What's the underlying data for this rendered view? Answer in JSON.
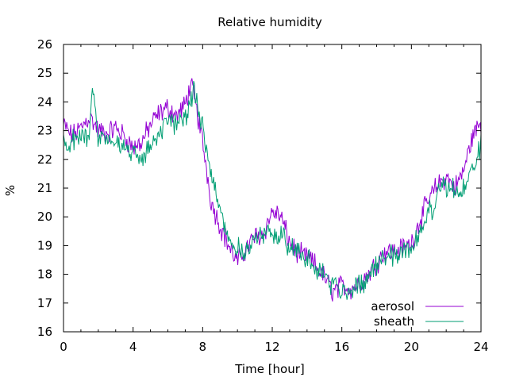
{
  "chart_data": {
    "type": "line",
    "title": "Relative humidity",
    "xlabel": "Time [hour]",
    "ylabel": "%",
    "xlim": [
      0,
      24
    ],
    "ylim": [
      16,
      26
    ],
    "xticks": [
      "0",
      "4",
      "8",
      "12",
      "16",
      "20",
      "24"
    ],
    "yticks": [
      "16",
      "17",
      "18",
      "19",
      "20",
      "21",
      "22",
      "23",
      "24",
      "25",
      "26"
    ],
    "grid": false,
    "legend_position": "bottom-right",
    "series": [
      {
        "name": "aerosol",
        "color": "#9400d3",
        "x": [
          0,
          0.5,
          1,
          1.5,
          2,
          2.5,
          3,
          3.5,
          4,
          4.5,
          5,
          5.5,
          6,
          6.5,
          7,
          7.3,
          7.5,
          8,
          8.5,
          9,
          9.5,
          10,
          10.5,
          11,
          11.5,
          12,
          12.5,
          13,
          13.5,
          14,
          14.5,
          15,
          15.5,
          16,
          16.5,
          17,
          17.5,
          18,
          18.5,
          19,
          19.5,
          20,
          20.5,
          21,
          21.5,
          22,
          22.5,
          23,
          23.5,
          24
        ],
        "y": [
          23.2,
          22.8,
          23.1,
          23.5,
          23.0,
          22.9,
          23.1,
          22.8,
          22.4,
          22.6,
          23.2,
          23.6,
          23.8,
          23.5,
          23.9,
          24.6,
          24.2,
          22.6,
          20.5,
          19.7,
          19.0,
          18.4,
          18.9,
          19.3,
          19.4,
          20.2,
          20.0,
          19.1,
          18.7,
          18.6,
          18.3,
          17.9,
          17.4,
          17.6,
          17.5,
          17.7,
          18.0,
          18.4,
          18.8,
          18.8,
          18.9,
          19.1,
          19.9,
          20.6,
          21.1,
          21.4,
          21.0,
          21.6,
          22.8,
          23.3
        ]
      },
      {
        "name": "sheath",
        "color": "#009e73",
        "x": [
          0,
          0.5,
          1,
          1.5,
          1.65,
          2,
          2.5,
          3,
          3.5,
          4,
          4.5,
          5,
          5.5,
          6,
          6.5,
          7,
          7.5,
          8,
          8.5,
          9,
          9.5,
          10,
          10.5,
          11,
          11.5,
          12,
          12.5,
          13,
          13.5,
          14,
          14.5,
          15,
          15.5,
          16,
          16.5,
          17,
          17.5,
          18,
          18.5,
          19,
          19.5,
          20,
          20.5,
          21,
          21.5,
          22,
          22.5,
          23,
          23.5,
          24
        ],
        "y": [
          22.5,
          22.6,
          22.8,
          22.9,
          24.8,
          22.7,
          22.8,
          22.5,
          22.4,
          22.2,
          22.0,
          22.5,
          23.0,
          23.2,
          23.3,
          23.5,
          24.3,
          23.2,
          21.5,
          20.3,
          19.2,
          18.9,
          18.8,
          19.2,
          19.4,
          19.3,
          19.5,
          19.0,
          18.8,
          18.5,
          18.2,
          18.0,
          17.6,
          17.4,
          17.5,
          17.6,
          17.9,
          18.3,
          18.7,
          18.7,
          18.8,
          18.9,
          19.5,
          20.1,
          20.7,
          21.1,
          20.9,
          20.9,
          21.6,
          22.5
        ]
      }
    ]
  }
}
